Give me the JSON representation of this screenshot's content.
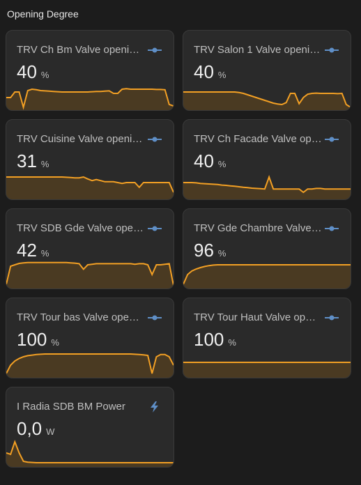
{
  "section_title": "Opening Degree",
  "cards": [
    {
      "name": "TRV Ch Bm Valve openi…",
      "value": "40",
      "unit": "%",
      "icon": "valve-icon",
      "trend": [
        60,
        60,
        40,
        40,
        95,
        35,
        30,
        32,
        35,
        36,
        37,
        38,
        39,
        40,
        40,
        40,
        40,
        40,
        40,
        40,
        39,
        38,
        38,
        37,
        36,
        45,
        45,
        30,
        28,
        30,
        30,
        30,
        30,
        30,
        30,
        31,
        31,
        32,
        85,
        90
      ]
    },
    {
      "name": "TRV Salon 1 Valve openi…",
      "value": "40",
      "unit": "%",
      "icon": "valve-icon",
      "trend": [
        40,
        40,
        40,
        40,
        40,
        40,
        40,
        40,
        40,
        40,
        40,
        40,
        40,
        42,
        45,
        50,
        55,
        60,
        65,
        70,
        75,
        80,
        83,
        85,
        78,
        45,
        45,
        82,
        60,
        48,
        45,
        44,
        45,
        45,
        45,
        45,
        46,
        45,
        85,
        95
      ]
    },
    {
      "name": "TRV Cuisine Valve openi…",
      "value": "31",
      "unit": "%",
      "icon": "valve-icon",
      "trend": [
        25,
        25,
        25,
        25,
        25,
        25,
        25,
        25,
        25,
        25,
        25,
        25,
        25,
        25,
        26,
        27,
        28,
        28,
        25,
        32,
        38,
        34,
        38,
        42,
        42,
        42,
        45,
        48,
        45,
        45,
        45,
        62,
        45,
        45,
        45,
        45,
        45,
        45,
        45,
        80
      ]
    },
    {
      "name": "TRV Ch Facade Valve op…",
      "value": "40",
      "unit": "%",
      "icon": "valve-icon",
      "trend": [
        45,
        45,
        45,
        46,
        48,
        49,
        50,
        51,
        52,
        54,
        55,
        57,
        58,
        60,
        62,
        63,
        65,
        66,
        67,
        68,
        25,
        68,
        68,
        68,
        68,
        68,
        68,
        68,
        80,
        68,
        68,
        66,
        66,
        68,
        68,
        68,
        68,
        68,
        68,
        68
      ]
    },
    {
      "name": "TRV SDB Gde Valve ope…",
      "value": "42",
      "unit": "%",
      "icon": "valve-icon",
      "trend": [
        90,
        25,
        20,
        15,
        13,
        12,
        12,
        12,
        12,
        12,
        12,
        12,
        12,
        12,
        12,
        13,
        14,
        16,
        36,
        20,
        18,
        16,
        16,
        16,
        16,
        16,
        16,
        16,
        16,
        16,
        18,
        16,
        16,
        20,
        55,
        20,
        20,
        18,
        16,
        95
      ]
    },
    {
      "name": "TRV Gde Chambre Valve…",
      "value": "96",
      "unit": "%",
      "icon": "valve-icon",
      "trend": [
        90,
        55,
        42,
        35,
        30,
        26,
        23,
        21,
        20,
        20,
        20,
        20,
        20,
        20,
        20,
        20,
        20,
        20,
        20,
        20,
        20,
        20,
        20,
        20,
        20,
        20,
        20,
        20,
        20,
        20,
        20,
        20,
        20,
        20,
        20,
        20,
        20,
        20,
        20,
        20
      ]
    },
    {
      "name": "TRV Tour bas Valve ope…",
      "value": "100",
      "unit": "%",
      "icon": "valve-icon",
      "trend": [
        90,
        60,
        45,
        36,
        30,
        26,
        24,
        22,
        21,
        20,
        20,
        20,
        20,
        20,
        20,
        20,
        20,
        20,
        20,
        20,
        20,
        20,
        20,
        20,
        20,
        20,
        20,
        20,
        20,
        20,
        21,
        22,
        23,
        25,
        90,
        30,
        22,
        22,
        30,
        60
      ]
    },
    {
      "name": "TRV Tour Haut Valve op…",
      "value": "100",
      "unit": "%",
      "icon": "valve-icon",
      "trend": [
        50,
        50,
        50,
        50,
        50,
        50,
        50,
        50,
        50,
        50,
        50,
        50,
        50,
        50,
        50,
        50,
        50,
        50,
        50,
        50,
        50,
        50,
        50,
        50,
        50,
        50,
        50,
        50,
        50,
        50,
        50,
        50,
        50,
        50,
        50,
        50,
        50,
        50,
        50,
        50
      ]
    },
    {
      "name": "I Radia SDB BM Power",
      "value": "0,0",
      "unit": "W",
      "icon": "lightning-icon",
      "trend": [
        55,
        60,
        15,
        55,
        85,
        88,
        89,
        90,
        90,
        90,
        90,
        90,
        90,
        90,
        90,
        90,
        90,
        90,
        90,
        90,
        90,
        90,
        90,
        90,
        90,
        90,
        90,
        90,
        90,
        90,
        90,
        90,
        90,
        90,
        90,
        90,
        90,
        90,
        90,
        90
      ]
    }
  ],
  "colors": {
    "line": "#f3a024",
    "fill": "#4a3a22",
    "icon": "#5f8fc7"
  }
}
